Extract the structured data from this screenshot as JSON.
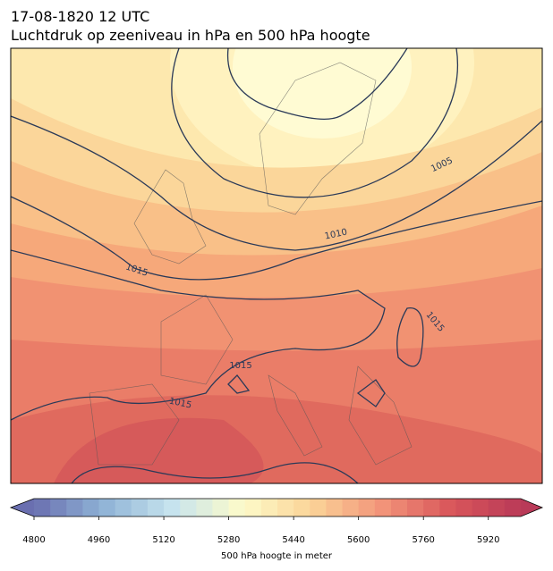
{
  "header": {
    "title": "17-08-1820 12 UTC",
    "subtitle": "Luchtdruk op zeeniveau in hPa en 500 hPa hoogte"
  },
  "isobar_labels": [
    1005,
    1010,
    1015,
    1015,
    1015,
    1015
  ],
  "colorbar": {
    "label": "500 hPa hoogte in meter",
    "lim": [
      4800,
      6000
    ],
    "ticks": [
      4800,
      4960,
      5120,
      5280,
      5440,
      5600,
      5760,
      5920
    ],
    "colormap": [
      "#6a6fb0",
      "#8fb3d6",
      "#c7e4ee",
      "#fdfbc9",
      "#fbd397",
      "#f2947a",
      "#d9565a",
      "#b93a58"
    ]
  }
}
